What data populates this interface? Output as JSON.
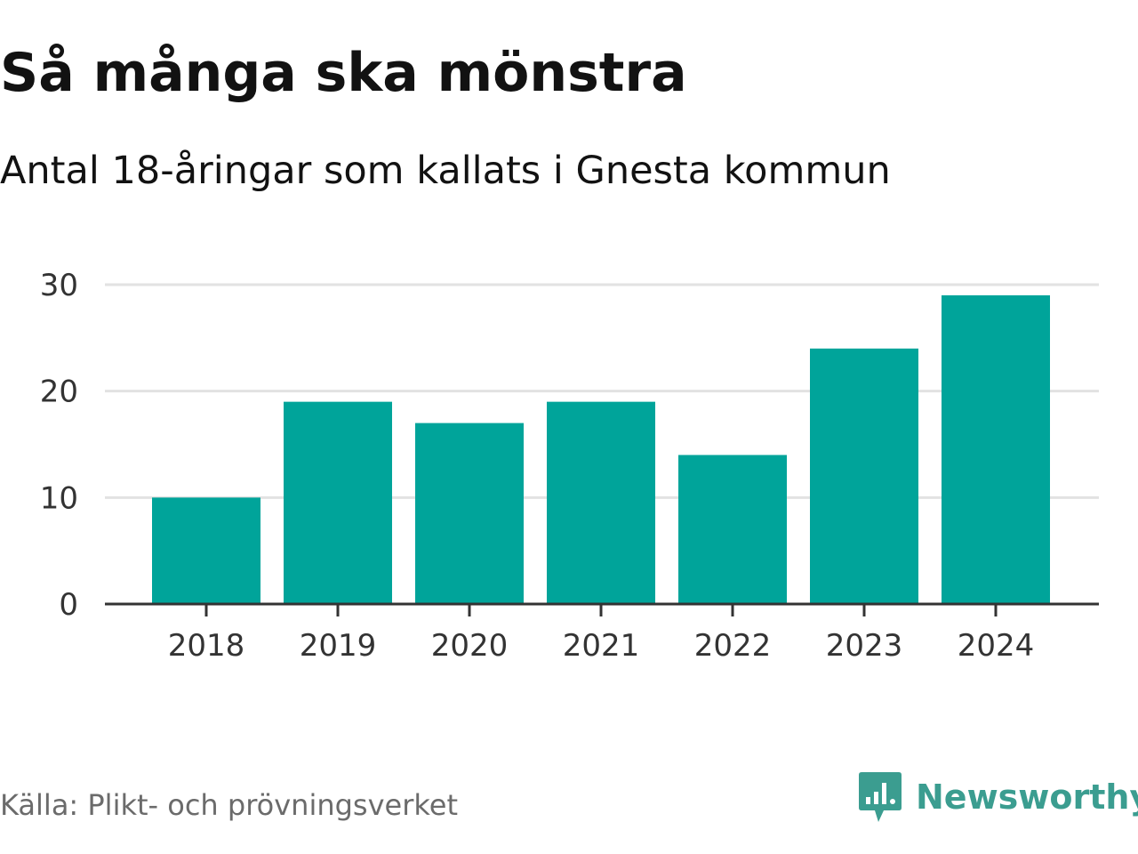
{
  "title": "Så många ska mönstra",
  "subtitle": "Antal 18-åringar som kallats i Gnesta kommun",
  "source": "Källa: Plikt- och prövningsverket",
  "brand": {
    "name": "Newsworthy",
    "icon": "newsworthy-logo-icon"
  },
  "colors": {
    "bar": "#00a49a",
    "grid": "#e2e2e2",
    "axis": "#333333",
    "tick_text": "#333333",
    "brand": "#3b9d90"
  },
  "chart_data": {
    "type": "bar",
    "title": "Så många ska mönstra",
    "subtitle": "Antal 18-åringar som kallats i Gnesta kommun",
    "xlabel": "",
    "ylabel": "",
    "categories": [
      "2018",
      "2019",
      "2020",
      "2021",
      "2022",
      "2023",
      "2024"
    ],
    "values": [
      10,
      19,
      17,
      19,
      14,
      24,
      29
    ],
    "ylim": [
      0,
      30
    ],
    "yticks": [
      0,
      10,
      20,
      30
    ],
    "ytick_labels": [
      "0",
      "10",
      "20",
      "30"
    ],
    "grid": true,
    "legend": "none"
  }
}
